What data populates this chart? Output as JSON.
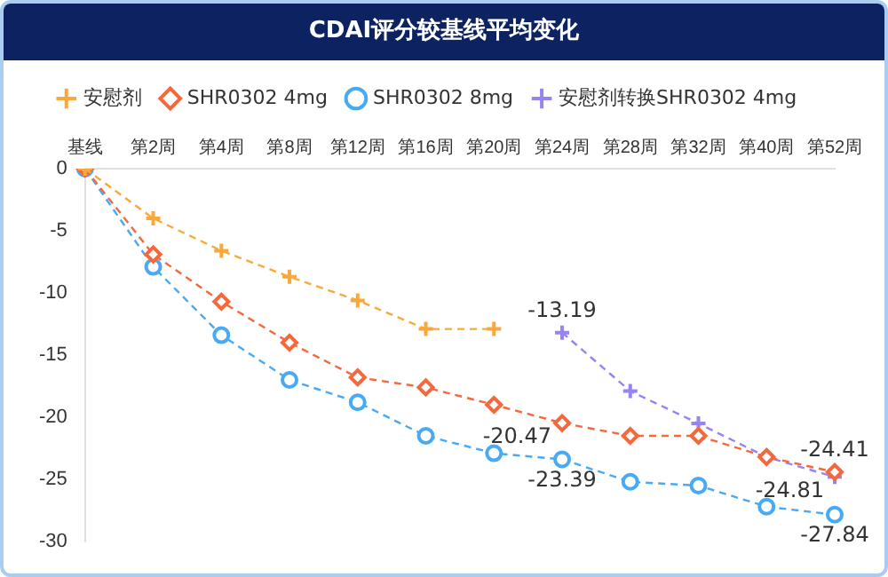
{
  "chart_data": {
    "type": "line",
    "title": "CDAI评分较基线平均变化",
    "categories": [
      "基线",
      "第2周",
      "第4周",
      "第8周",
      "第12周",
      "第16周",
      "第20周",
      "第24周",
      "第28周",
      "第32周",
      "第40周",
      "第52周"
    ],
    "ylim": [
      -30,
      0
    ],
    "yticks": [
      0,
      -5,
      -10,
      -15,
      -20,
      -25,
      -30
    ],
    "grid": false,
    "legend": "top",
    "line_style": "dashed",
    "series": [
      {
        "name": "安慰剂",
        "color": "#f9a83a",
        "marker": "cross",
        "values": [
          0,
          -4.0,
          -6.6,
          -8.7,
          -10.6,
          -12.9,
          -12.9,
          null,
          null,
          null,
          null,
          null
        ]
      },
      {
        "name": "SHR0302 4mg",
        "color": "#f4683c",
        "marker": "diamond",
        "values": [
          0,
          -6.9,
          -10.7,
          -14.0,
          -16.8,
          -17.6,
          -19.0,
          -20.47,
          -21.5,
          -21.5,
          -23.2,
          -24.41
        ],
        "value_labels": [
          null,
          null,
          null,
          null,
          null,
          null,
          null,
          "-20.47",
          null,
          null,
          null,
          "-24.41"
        ]
      },
      {
        "name": "SHR0302 8mg",
        "color": "#48a9f4",
        "marker": "circle",
        "values": [
          0,
          -7.9,
          -13.4,
          -17.0,
          -18.8,
          -21.5,
          -22.9,
          -23.39,
          -25.2,
          -25.5,
          -27.2,
          -27.84
        ],
        "value_labels": [
          null,
          null,
          null,
          null,
          null,
          null,
          null,
          "-23.39",
          null,
          null,
          null,
          "-27.84"
        ]
      },
      {
        "name": "安慰剂转换SHR0302 4mg",
        "color": "#9683f4",
        "marker": "cross",
        "values": [
          null,
          null,
          null,
          null,
          null,
          null,
          null,
          -13.19,
          -17.9,
          -20.5,
          -23.2,
          -24.81
        ],
        "value_labels": [
          null,
          null,
          null,
          null,
          null,
          null,
          null,
          "-13.19",
          null,
          null,
          null,
          "-24.81"
        ]
      }
    ]
  }
}
